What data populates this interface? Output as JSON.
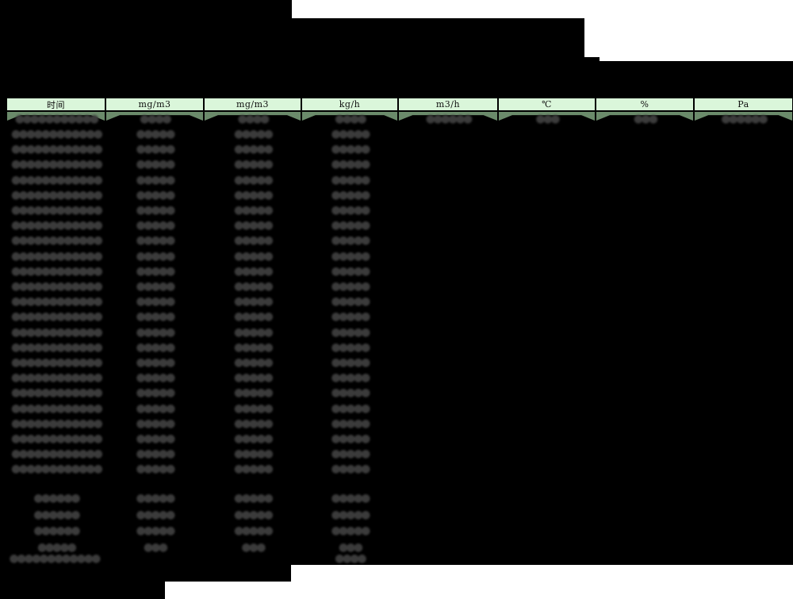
{
  "colors": {
    "background": "#000000",
    "paper": "#ffffff",
    "header_fill": "#daf6da",
    "band_fill": "#6b8b6b",
    "blob_text": "#3b3b3b",
    "border": "#000000"
  },
  "table": {
    "headers": [
      "时间",
      "mg/m3",
      "mg/m3",
      "kg/h",
      "m3/h",
      "℃",
      "%",
      "Pa"
    ],
    "first_data_row": {
      "masks": [
        "●●●●●●●●●●●",
        "●●●●",
        "●●●●",
        "●●●●",
        "●●●●●●",
        "●●●",
        "●●●",
        "●●●●●●"
      ]
    },
    "body_rows": {
      "count": 23,
      "masks": [
        "●●●●●●●●●●●●",
        "●●●●●",
        "●●●●●",
        "●●●●●"
      ]
    },
    "summary_rows": [
      {
        "masks": [
          "●●●●●●",
          "●●●●●",
          "●●●●●",
          "●●●●●"
        ]
      },
      {
        "masks": [
          "●●●●●●",
          "●●●●●",
          "●●●●●",
          "●●●●●"
        ]
      },
      {
        "masks": [
          "●●●●●●",
          "●●●●●",
          "●●●●●",
          "●●●●●"
        ]
      },
      {
        "masks": [
          "●●●●●",
          "●●●",
          "●●●",
          "●●●"
        ]
      }
    ],
    "footer_row": {
      "masks": [
        "●●●●●●●●●●●●",
        null,
        null,
        "●●●●"
      ]
    }
  }
}
